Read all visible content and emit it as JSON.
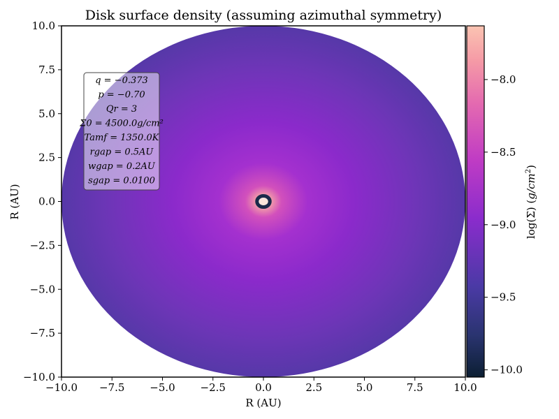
{
  "chart_data": {
    "type": "heatmap",
    "title": "Disk surface density (assuming azimuthal symmetry)",
    "xlabel": "R (AU)",
    "ylabel": "R (AU)",
    "xlim": [
      -10,
      10
    ],
    "ylim": [
      -10,
      10
    ],
    "x_ticks": [
      "−10.0",
      "−7.5",
      "−5.0",
      "−2.5",
      "0.0",
      "2.5",
      "5.0",
      "7.5",
      "10.0"
    ],
    "y_ticks": [
      "10.0",
      "7.5",
      "5.0",
      "2.5",
      "0.0",
      "−2.5",
      "−5.0",
      "−7.5",
      "−10.0"
    ],
    "grid": false,
    "colorbar": {
      "label": "log(Σ) (g/cm²)",
      "range": [
        -10.05,
        -7.63
      ],
      "ticks": [
        "−8.0",
        "−8.5",
        "−9.0",
        "−9.5",
        "−10.0"
      ],
      "colormap": [
        "#0c1f33",
        "#3f3f99",
        "#8a2ccc",
        "#d24fb9",
        "#f59aa6",
        "#fbc4b2"
      ]
    },
    "disk": {
      "outer_radius_au": 10,
      "inner_gap_radius_au": 0.2,
      "center_log_sigma": -7.7,
      "edge_log_sigma": -9.45,
      "inner_ring_log_sigma": -10.0
    },
    "annotation_box": {
      "lines": [
        "q = −0.373",
        "p = −0.70",
        "Qr = 3",
        "Σ0 = 4500.0g/cm²",
        "Tamf = 1350.0K",
        "rgap = 0.5AU",
        "wgap = 0.2AU",
        "sgap = 0.0100"
      ]
    }
  }
}
